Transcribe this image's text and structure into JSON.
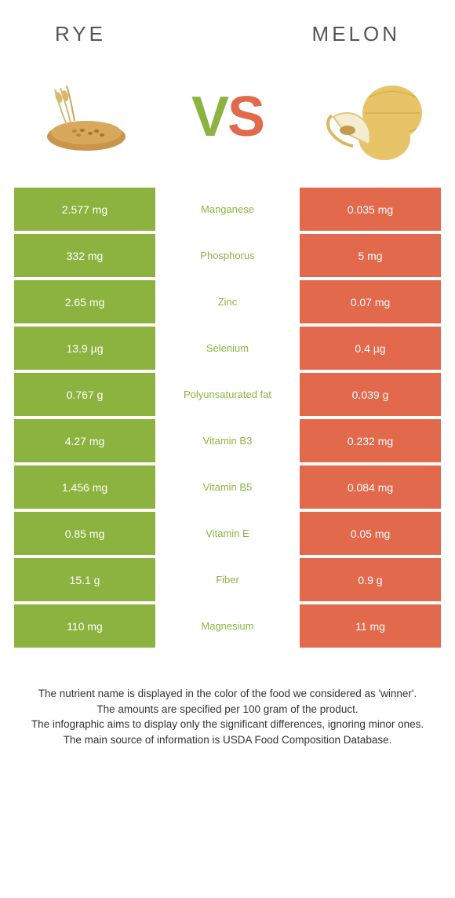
{
  "header": {
    "left": "RYE",
    "right": "MELON"
  },
  "vs": {
    "v": "V",
    "s": "S"
  },
  "colors": {
    "left_cell": "#8cb33f",
    "right_cell": "#e2694c",
    "mid_bg": "#ffffff",
    "mid_text_left_winner": "#8cb33f",
    "mid_text_right_winner": "#e2694c"
  },
  "rows": [
    {
      "left": "2.577 mg",
      "label": "Manganese",
      "right": "0.035 mg",
      "winner": "left"
    },
    {
      "left": "332 mg",
      "label": "Phosphorus",
      "right": "5 mg",
      "winner": "left"
    },
    {
      "left": "2.65 mg",
      "label": "Zinc",
      "right": "0.07 mg",
      "winner": "left"
    },
    {
      "left": "13.9 µg",
      "label": "Selenium",
      "right": "0.4 µg",
      "winner": "left"
    },
    {
      "left": "0.767 g",
      "label": "Polyunsaturated fat",
      "right": "0.039 g",
      "winner": "left"
    },
    {
      "left": "4.27 mg",
      "label": "Vitamin B3",
      "right": "0.232 mg",
      "winner": "left"
    },
    {
      "left": "1.456 mg",
      "label": "Vitamin B5",
      "right": "0.084 mg",
      "winner": "left"
    },
    {
      "left": "0.85 mg",
      "label": "Vitamin E",
      "right": "0.05 mg",
      "winner": "left"
    },
    {
      "left": "15.1 g",
      "label": "Fiber",
      "right": "0.9 g",
      "winner": "left"
    },
    {
      "left": "110 mg",
      "label": "Magnesium",
      "right": "11 mg",
      "winner": "left"
    }
  ],
  "footer": {
    "line1": "The nutrient name is displayed in the color of the food we considered as 'winner'.",
    "line2": "The amounts are specified per 100 gram of the product.",
    "line3": "The infographic aims to display only the significant differences, ignoring minor ones.",
    "line4": "The main source of information is USDA Food Composition Database."
  }
}
